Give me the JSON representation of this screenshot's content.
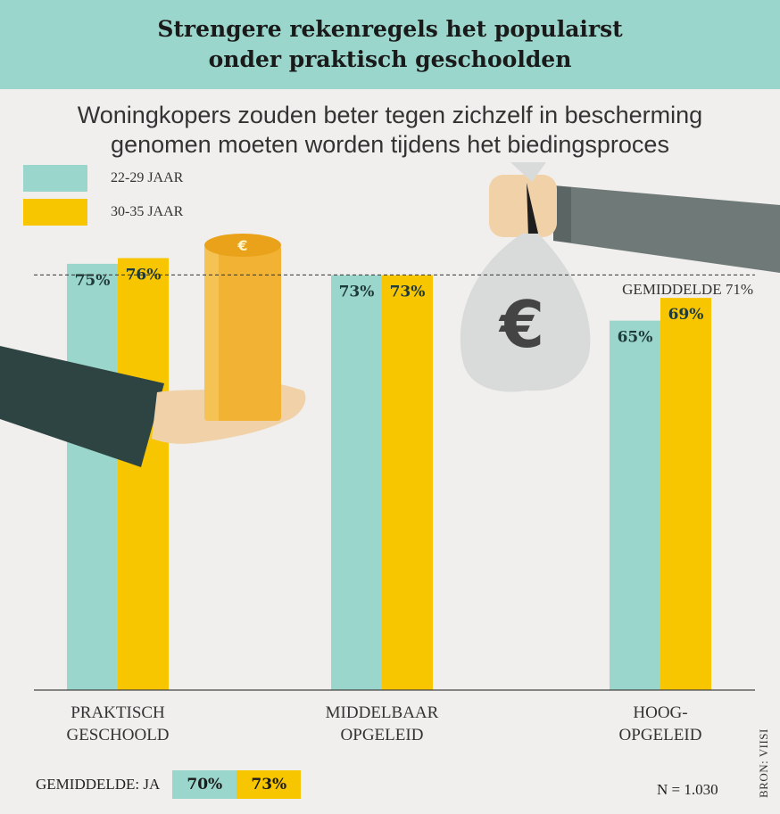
{
  "header": {
    "title_line1": "Strengere rekenregels het populairst",
    "title_line2": "onder praktisch geschoolden"
  },
  "subtitle": {
    "line1": "Woningkopers zouden beter tegen zichzelf in bescherming",
    "line2": "genomen moeten worden tijdens het biedingsproces"
  },
  "colors": {
    "teal": "#9ad6cb",
    "yellow": "#f7c600",
    "header_bg": "#9ad6cb",
    "background": "#f0efed"
  },
  "chart_data": {
    "type": "bar",
    "title": "Woningkopers zouden beter tegen zichzelf in bescherming genomen moeten worden tijdens het biedingsproces",
    "categories": [
      "PRAKTISCH GESCHOOLD",
      "MIDDELBAAR OPGELEID",
      "HOOG-OPGELEID"
    ],
    "category_lines": [
      [
        "PRAKTISCH",
        "GESCHOOLD"
      ],
      [
        "MIDDELBAAR",
        "OPGELEID"
      ],
      [
        "HOOG-",
        "OPGELEID"
      ]
    ],
    "series": [
      {
        "name": "22-29 JAAR",
        "values": [
          75,
          73,
          65
        ],
        "labels": [
          "75%",
          "73%",
          "65%"
        ],
        "color": "#9ad6cb"
      },
      {
        "name": "30-35 JAAR",
        "values": [
          76,
          73,
          69
        ],
        "labels": [
          "76%",
          "73%",
          "69%"
        ],
        "color": "#f7c600"
      }
    ],
    "average": {
      "label": "GEMIDDELDE 71%",
      "value": 71
    },
    "ylim": [
      0,
      100
    ],
    "legend_position": "top-left",
    "grid": false
  },
  "footer": {
    "average_label": "GEMIDDELDE: JA",
    "average_values": [
      "70%",
      "73%"
    ],
    "sample_size": "N = 1.030",
    "source": "BRON: VIISI"
  },
  "icons": [
    "money-bag-euro-icon",
    "coin-stack-icon",
    "hand-giving-icon",
    "hand-holding-icon"
  ]
}
